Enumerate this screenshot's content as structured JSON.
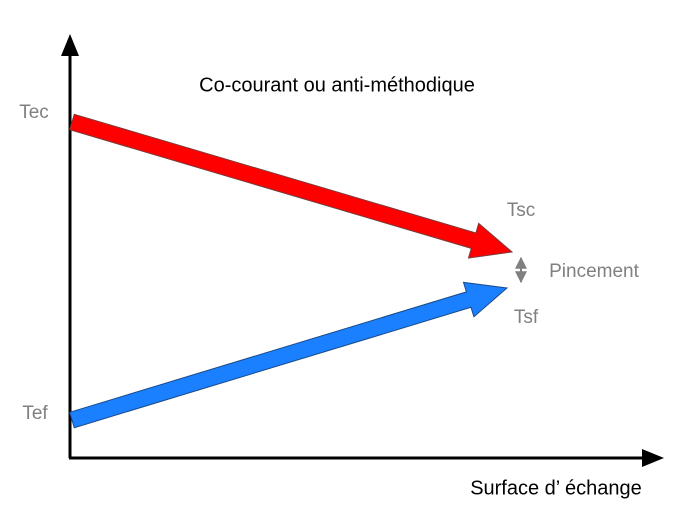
{
  "title": "Co-courant ou anti-méthodique",
  "labels": {
    "hot_in": "Tec",
    "cold_in": "Tef",
    "hot_out": "Tsc",
    "cold_out": "Tsf",
    "pinch": "Pincement"
  },
  "x_axis_label": "Surface d’ échange"
}
